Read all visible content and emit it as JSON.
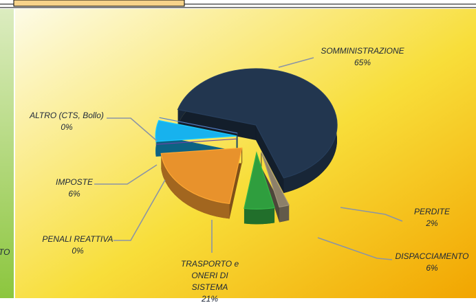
{
  "chart_data": {
    "type": "pie",
    "categories": [
      "SOMMINISTRAZIONE",
      "PERDITE",
      "DISPACCIAMENTO",
      "TRASPORTO e ONERI DI SISTEMA",
      "PENALI REATTIVA",
      "IMPOSTE",
      "ALTRO (CTS, Bollo)"
    ],
    "values": [
      65,
      2,
      6,
      21,
      0,
      6,
      0
    ],
    "value_labels": [
      "65%",
      "2%",
      "6%",
      "21%",
      "0%",
      "6%",
      "0%"
    ],
    "colors": [
      "#22364f",
      "#8c806a",
      "#2f9e3e",
      "#e8922c",
      "#5b3c8e",
      "#17b2ee",
      "#4a6fb0"
    ],
    "three_d": true,
    "exploded": true
  },
  "left_panel_text": "TO"
}
